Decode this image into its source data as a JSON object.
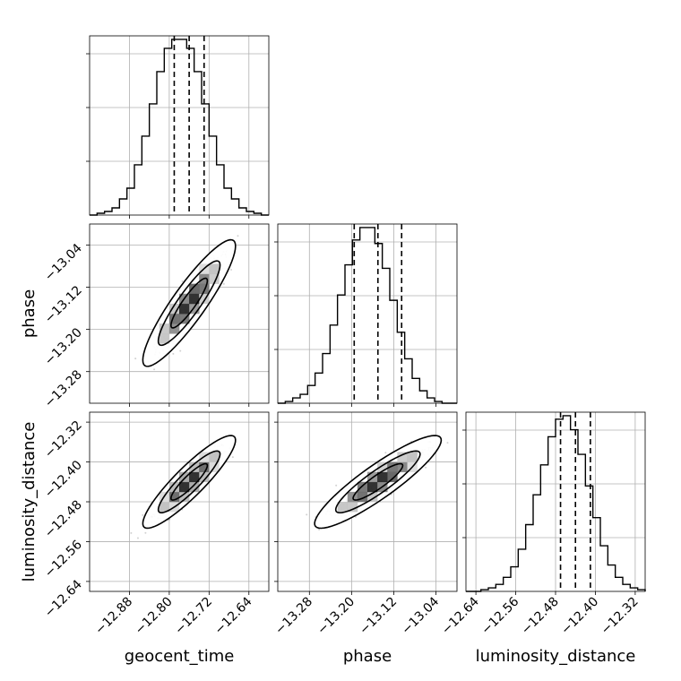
{
  "chart_data": {
    "type": "corner",
    "title": "",
    "parameters": [
      {
        "name": "geocent_time",
        "label": "geocent_time",
        "range": [
          -12.96,
          -12.6
        ],
        "ticks": [
          -12.88,
          -12.8,
          -12.72,
          -12.64
        ],
        "tick_labels": [
          "−12.88",
          "−12.80",
          "−12.72",
          "−12.64"
        ],
        "quantiles": [
          -12.79,
          -12.76,
          -12.73
        ],
        "hist_bins": [
          -12.96,
          -12.945,
          -12.93,
          -12.915,
          -12.9,
          -12.885,
          -12.87,
          -12.855,
          -12.84,
          -12.825,
          -12.81,
          -12.795,
          -12.78,
          -12.765,
          -12.75,
          -12.735,
          -12.72,
          -12.705,
          -12.69,
          -12.675,
          -12.66,
          -12.645,
          -12.63,
          -12.615,
          -12.6
        ],
        "hist_counts": [
          0,
          1,
          2,
          4,
          9,
          15,
          28,
          44,
          62,
          80,
          93,
          98,
          98,
          93,
          80,
          62,
          44,
          28,
          15,
          9,
          4,
          2,
          1,
          0
        ]
      },
      {
        "name": "phase",
        "label": "phase",
        "range": [
          -13.34,
          -13.0
        ],
        "ticks": [
          -13.28,
          -13.2,
          -13.12,
          -13.04
        ],
        "tick_labels": [
          "−13.28",
          "−13.20",
          "−13.12",
          "−13.04"
        ],
        "quantiles": [
          -13.195,
          -13.15,
          -13.105
        ],
        "hist_bins": [
          -13.34,
          -13.3258,
          -13.3117,
          -13.2975,
          -13.2833,
          -13.2692,
          -13.255,
          -13.2408,
          -13.2267,
          -13.2125,
          -13.1983,
          -13.1842,
          -13.17,
          -13.1558,
          -13.1417,
          -13.1275,
          -13.1133,
          -13.0992,
          -13.085,
          -13.0708,
          -13.0567,
          -13.0425,
          -13.0283,
          -13.0142,
          -13.0
        ],
        "hist_counts": [
          0,
          1,
          3,
          5,
          10,
          17,
          28,
          44,
          61,
          78,
          92,
          99,
          99,
          90,
          76,
          58,
          40,
          25,
          14,
          7,
          3,
          1,
          0,
          0
        ]
      },
      {
        "name": "luminosity_distance",
        "label": "luminosity_distance",
        "range": [
          -12.66,
          -12.3
        ],
        "ticks": [
          -12.64,
          -12.56,
          -12.48,
          -12.4,
          -12.32
        ],
        "tick_labels": [
          "−12.64",
          "−12.56",
          "−12.48",
          "−12.40",
          "−12.32"
        ],
        "quantiles": [
          -12.47,
          -12.44,
          -12.41
        ],
        "hist_bins": [
          -12.66,
          -12.645,
          -12.63,
          -12.615,
          -12.6,
          -12.585,
          -12.57,
          -12.555,
          -12.54,
          -12.525,
          -12.51,
          -12.495,
          -12.48,
          -12.465,
          -12.45,
          -12.435,
          -12.42,
          -12.405,
          -12.39,
          -12.375,
          -12.36,
          -12.345,
          -12.33,
          -12.315,
          -12.3
        ],
        "hist_counts": [
          0,
          0,
          1,
          2,
          4,
          8,
          14,
          24,
          38,
          55,
          72,
          88,
          98,
          100,
          92,
          78,
          60,
          42,
          26,
          15,
          8,
          4,
          2,
          1
        ]
      }
    ],
    "pairs": [
      {
        "x": "geocent_time",
        "y": "phase",
        "center": [
          -12.76,
          -13.15
        ],
        "sd": [
          0.031,
          0.04
        ],
        "corr": 0.9,
        "n_points": 900
      },
      {
        "x": "geocent_time",
        "y": "luminosity_distance",
        "center": [
          -12.76,
          -12.44
        ],
        "sd": [
          0.031,
          0.031
        ],
        "corr": 0.9,
        "n_points": 900
      },
      {
        "x": "phase",
        "y": "luminosity_distance",
        "center": [
          -13.15,
          -12.44
        ],
        "sd": [
          0.04,
          0.031
        ],
        "corr": 0.9,
        "n_points": 900
      }
    ],
    "contour_levels": [
      0.5,
      0.865,
      0.989
    ],
    "hist_color": "#000000",
    "scatter_color": "#000000",
    "grid": true,
    "legend": "none"
  }
}
